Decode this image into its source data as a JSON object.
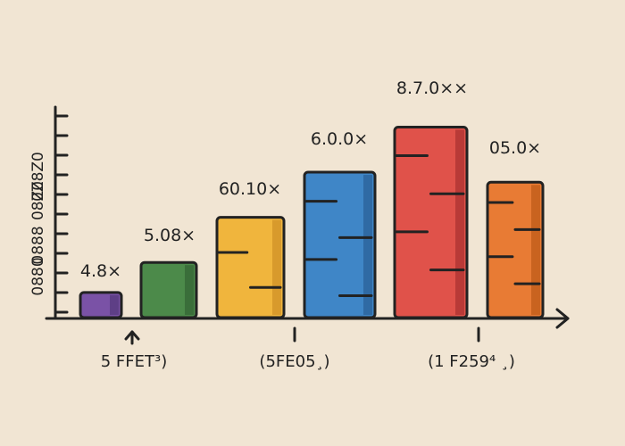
{
  "chart_data": {
    "type": "bar",
    "y_axis_labels": [
      "0880",
      "0888",
      "08Z0",
      "0Z8Z0"
    ],
    "values": [
      0.5,
      1.1,
      2.0,
      2.9,
      3.8,
      2.7
    ],
    "data_labels": [
      "4.8×",
      "5.08×",
      "60.10×",
      "6.0.0×",
      "8.7.0××",
      "05.0×"
    ],
    "x_group_labels": [
      "5 FFET³)",
      "(5FE05¸)",
      "(1 F259⁴ ¸)"
    ],
    "ylim": [
      0,
      4.2
    ],
    "colors": [
      "#7a52a6",
      "#4c8a4a",
      "#f0b53d",
      "#3f86c7",
      "#e0524a",
      "#e87b34"
    ],
    "shade_colors": [
      "#5e3f86",
      "#3a6e3a",
      "#d89a2c",
      "#2f6aa4",
      "#b93a37",
      "#c9631f"
    ],
    "grid": false,
    "legend": "none"
  }
}
